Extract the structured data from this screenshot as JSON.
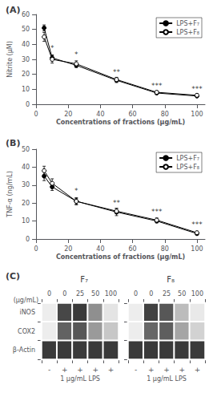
{
  "chart_data": [
    {
      "type": "line",
      "title": "(A)",
      "xlabel": "Concentrations of fractions (μg/mL)",
      "ylabel": "Nitrite (μM)",
      "x": [
        5,
        10,
        25,
        50,
        75,
        100
      ],
      "series": [
        {
          "name": "LPS+F₇",
          "color": "black",
          "marker": "filled",
          "values": [
            51,
            31,
            26,
            16,
            7.5,
            5.5
          ],
          "errors": [
            2.0,
            2.0,
            1.5,
            1.5,
            0.8,
            0.8
          ]
        },
        {
          "name": "LPS+F₈",
          "color": "black",
          "marker": "open",
          "values": [
            45,
            30,
            27,
            16.5,
            8,
            6
          ],
          "errors": [
            3.0,
            2.5,
            2.0,
            1.5,
            1.0,
            1.0
          ]
        }
      ],
      "xlim": [
        0,
        105
      ],
      "xticks": [
        0,
        20,
        40,
        60,
        80,
        100
      ],
      "ylim": [
        0,
        60
      ],
      "yticks": [
        0,
        10,
        20,
        30,
        40,
        50,
        60
      ],
      "annotations": [
        {
          "x": 10,
          "y": 35,
          "text": "*"
        },
        {
          "x": 25,
          "y": 31,
          "text": "*"
        },
        {
          "x": 50,
          "y": 19,
          "text": "**"
        },
        {
          "x": 75,
          "y": 10,
          "text": "***"
        },
        {
          "x": 100,
          "y": 8,
          "text": "***"
        }
      ],
      "legend": "upper right",
      "grid": false
    },
    {
      "type": "line",
      "title": "(B)",
      "xlabel": "Concentrations of fractions (μg/mL)",
      "ylabel": "TNF-α (ng/mL)",
      "x": [
        5,
        10,
        25,
        50,
        75,
        100
      ],
      "series": [
        {
          "name": "LPS+F₇",
          "color": "black",
          "marker": "filled",
          "values": [
            35,
            29,
            21,
            15,
            10,
            3
          ],
          "errors": [
            2.5,
            2.0,
            1.5,
            2.0,
            1.0,
            0.5
          ]
        },
        {
          "name": "LPS+F₈",
          "color": "black",
          "marker": "open",
          "values": [
            38,
            31,
            21,
            15.5,
            10.5,
            3.5
          ],
          "errors": [
            2.5,
            2.5,
            2.0,
            1.5,
            1.2,
            0.8
          ]
        }
      ],
      "xlim": [
        0,
        105
      ],
      "xticks": [
        0,
        20,
        40,
        60,
        80,
        100
      ],
      "ylim": [
        0,
        50
      ],
      "yticks": [
        0,
        10,
        20,
        30,
        40,
        50
      ],
      "annotations": [
        {
          "x": 25,
          "y": 25,
          "text": "*"
        },
        {
          "x": 50,
          "y": 18,
          "text": "**"
        },
        {
          "x": 75,
          "y": 13,
          "text": "***"
        },
        {
          "x": 100,
          "y": 6,
          "text": "***"
        }
      ],
      "legend": "upper right",
      "grid": false
    },
    {
      "type": "heatmap",
      "title": "(C)",
      "subtitle": "F₇",
      "xlabel": "(μg/mL)",
      "categories": [
        "0",
        "0",
        "25",
        "50",
        "100"
      ],
      "rows": [
        "iNOS",
        "COX2",
        "β-Actin"
      ],
      "values": [
        [
          0.08,
          0.82,
          0.88,
          0.5,
          0.12
        ],
        [
          0.08,
          0.7,
          0.75,
          0.45,
          0.25
        ],
        [
          0.88,
          0.88,
          0.88,
          0.88,
          0.88
        ]
      ],
      "zlim": [
        0,
        1
      ],
      "lps_values": [
        "-",
        "+",
        "+",
        "+",
        "+"
      ],
      "lps_label": "1 μg/mL LPS"
    },
    {
      "type": "heatmap",
      "subtitle": "F₈",
      "categories": [
        "0",
        "0",
        "25",
        "50",
        "100"
      ],
      "rows": [
        "iNOS",
        "COX2",
        "β-Actin"
      ],
      "values": [
        [
          0.08,
          0.85,
          0.75,
          0.3,
          0.1
        ],
        [
          0.08,
          0.68,
          0.72,
          0.4,
          0.2
        ],
        [
          0.88,
          0.88,
          0.88,
          0.88,
          0.88
        ]
      ],
      "zlim": [
        0,
        1
      ],
      "lps_values": [
        "-",
        "+",
        "+",
        "+",
        "+"
      ],
      "lps_label": "1 μg/mL LPS",
      "tick_labels": "x"
    }
  ]
}
